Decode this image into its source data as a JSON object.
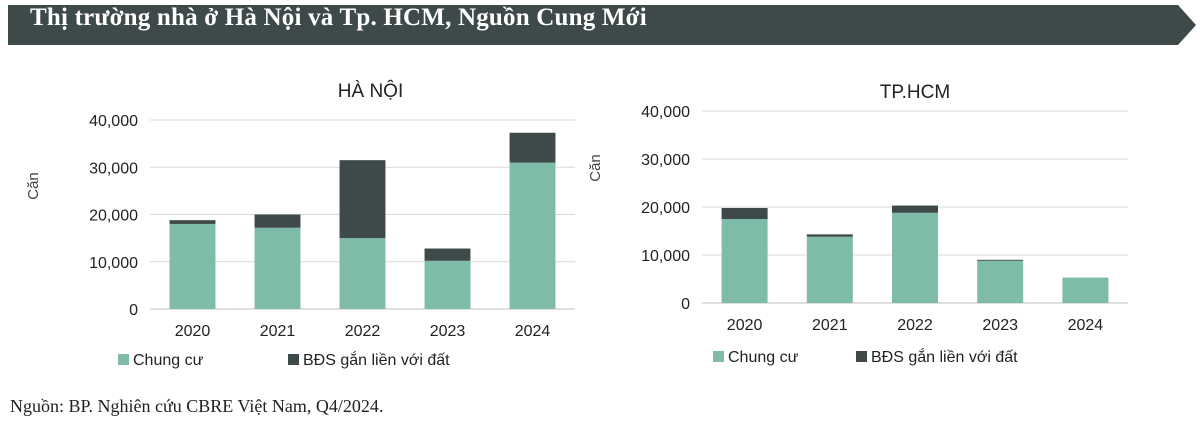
{
  "banner": {
    "title": "Thị trường nhà ở Hà Nội và Tp. HCM, Nguồn Cung Mới",
    "color": "#3d4a49"
  },
  "colors": {
    "chung_cu": "#7fbba9",
    "bds": "#3d4a49",
    "grid": "#d9d9d9"
  },
  "chart_data": [
    {
      "type": "bar",
      "stacked": true,
      "title": "HÀ NỘI",
      "ylabel": "Căn",
      "ylim": [
        0,
        40000
      ],
      "yticks": [
        "0",
        "10,000",
        "20,000",
        "30,000",
        "40,000"
      ],
      "categories": [
        "2020",
        "2021",
        "2022",
        "2023",
        "2024"
      ],
      "series": [
        {
          "name": "Chung cư",
          "values": [
            18000,
            17200,
            15000,
            10200,
            31000
          ]
        },
        {
          "name": "BĐS gắn liền với đất",
          "values": [
            800,
            2800,
            16500,
            2600,
            6300
          ]
        }
      ],
      "legend": "bottom-left"
    },
    {
      "type": "bar",
      "stacked": true,
      "title": "TP.HCM",
      "ylabel": "Căn",
      "ylim": [
        0,
        40000
      ],
      "yticks": [
        "0",
        "10,000",
        "20,000",
        "30,000",
        "40,000"
      ],
      "categories": [
        "2020",
        "2021",
        "2022",
        "2023",
        "2024"
      ],
      "series": [
        {
          "name": "Chung cư",
          "values": [
            17500,
            13800,
            18800,
            8800,
            5300
          ]
        },
        {
          "name": "BĐS gắn liền với đất",
          "values": [
            2300,
            500,
            1500,
            200,
            0
          ]
        }
      ],
      "legend": "bottom-left"
    }
  ],
  "source": "Nguồn: BP. Nghiên cứu CBRE Việt Nam, Q4/2024."
}
